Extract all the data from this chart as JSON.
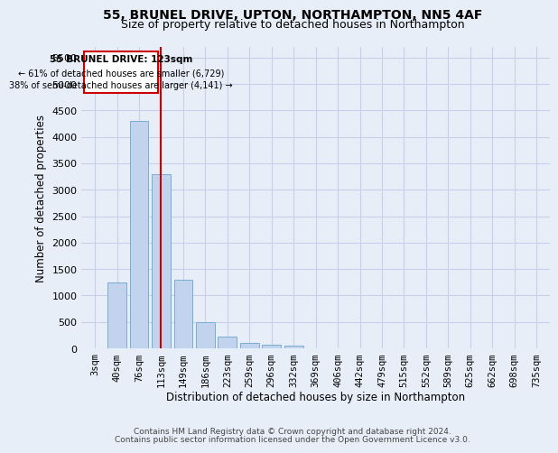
{
  "title_line1": "55, BRUNEL DRIVE, UPTON, NORTHAMPTON, NN5 4AF",
  "title_line2": "Size of property relative to detached houses in Northampton",
  "xlabel": "Distribution of detached houses by size in Northampton",
  "ylabel": "Number of detached properties",
  "footnote1": "Contains HM Land Registry data © Crown copyright and database right 2024.",
  "footnote2": "Contains public sector information licensed under the Open Government Licence v3.0.",
  "annotation_line1": "55 BRUNEL DRIVE: 123sqm",
  "annotation_line2": "← 61% of detached houses are smaller (6,729)",
  "annotation_line3": "38% of semi-detached houses are larger (4,141) →",
  "categories": [
    "3sqm",
    "40sqm",
    "76sqm",
    "113sqm",
    "149sqm",
    "186sqm",
    "223sqm",
    "259sqm",
    "296sqm",
    "332sqm",
    "369sqm",
    "406sqm",
    "442sqm",
    "479sqm",
    "515sqm",
    "552sqm",
    "589sqm",
    "625sqm",
    "662sqm",
    "698sqm",
    "735sqm"
  ],
  "values": [
    0,
    1250,
    4300,
    3300,
    1300,
    500,
    220,
    110,
    70,
    50,
    0,
    0,
    0,
    0,
    0,
    0,
    0,
    0,
    0,
    0,
    0
  ],
  "marker_index": 3,
  "bar_color": "#c2d4ed",
  "bar_edge_color": "#7aadd4",
  "marker_color": "#cc0000",
  "ylim": [
    0,
    5700
  ],
  "yticks": [
    0,
    500,
    1000,
    1500,
    2000,
    2500,
    3000,
    3500,
    4000,
    4500,
    5000,
    5500
  ],
  "background_color": "#e8eef8",
  "grid_color": "#c8d0e8"
}
